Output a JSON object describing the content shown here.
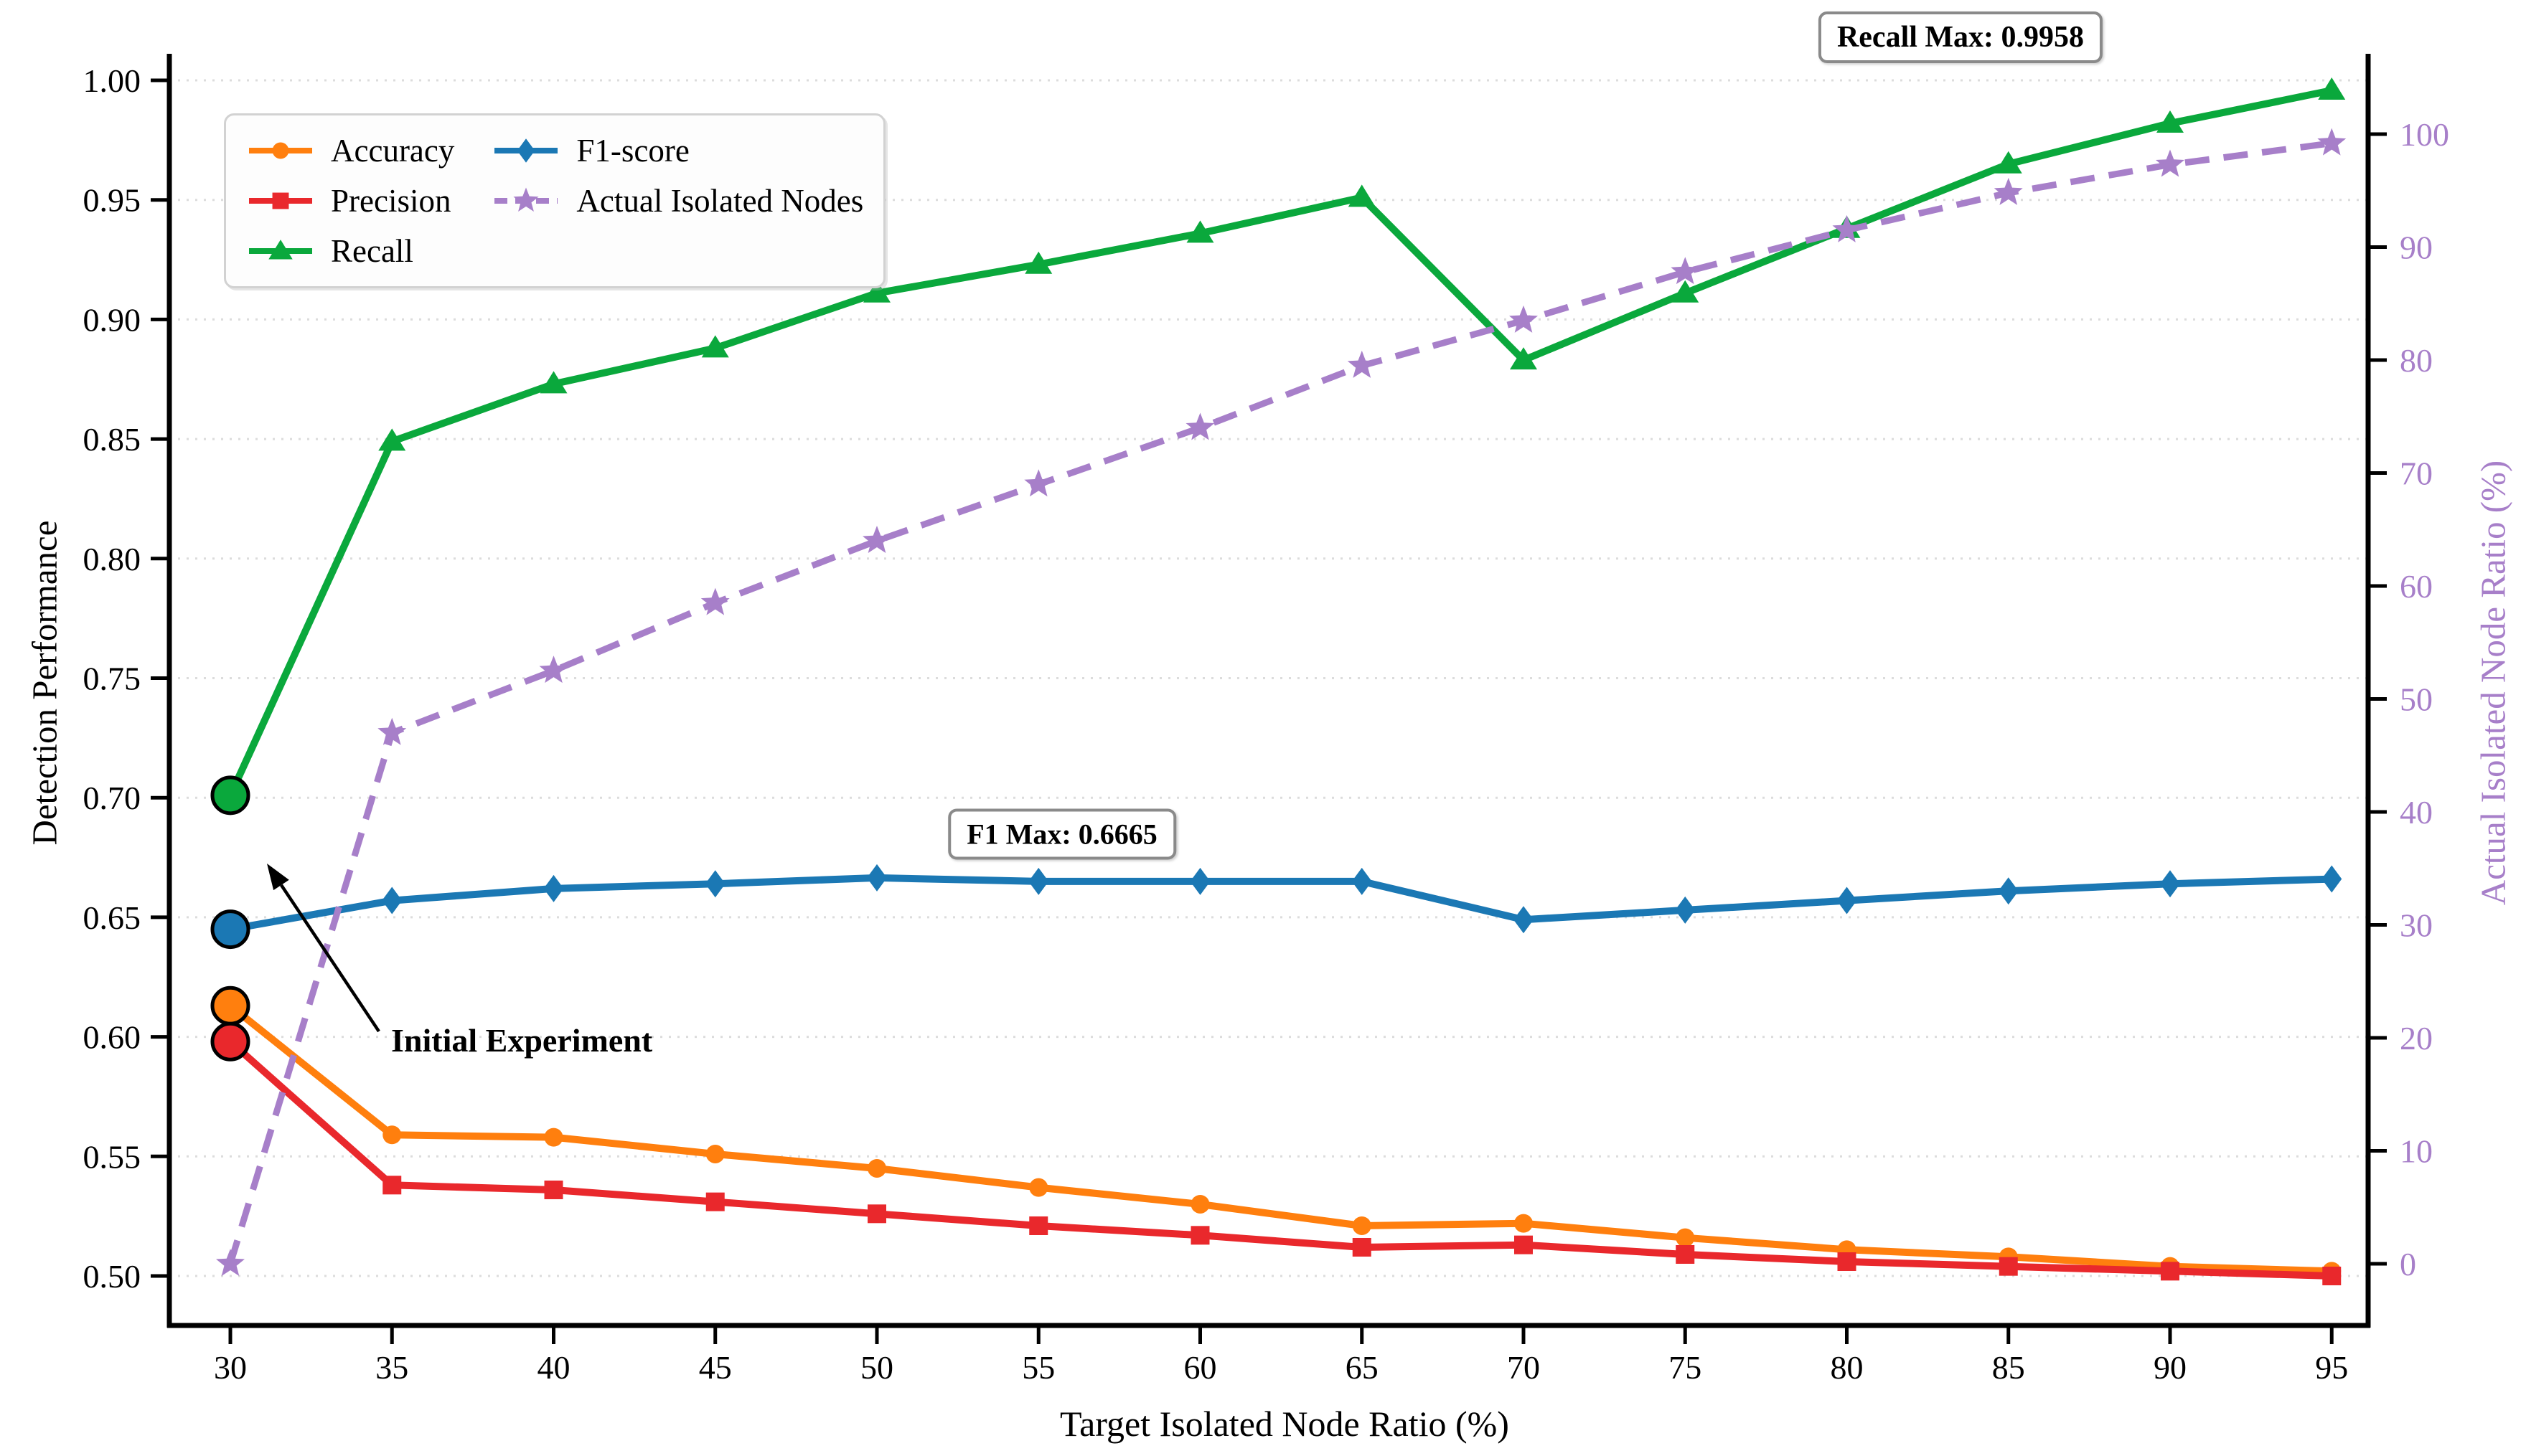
{
  "chart_data": {
    "type": "line",
    "title": "",
    "x": [
      30,
      35,
      40,
      45,
      50,
      55,
      60,
      65,
      70,
      75,
      80,
      85,
      90,
      95
    ],
    "xlabel": "Target Isolated Node Ratio (%)",
    "ylabel_left": "Detection Performance",
    "ylabel_right": "Actual Isolated Node Ratio (%)",
    "ylim_left": [
      0.5,
      1.0
    ],
    "ylim_right": [
      0,
      100
    ],
    "xticks": [
      "30",
      "35",
      "40",
      "45",
      "50",
      "55",
      "60",
      "65",
      "70",
      "75",
      "80",
      "85",
      "90",
      "95"
    ],
    "yticks_left": [
      "0.50",
      "0.55",
      "0.60",
      "0.65",
      "0.70",
      "0.75",
      "0.80",
      "0.85",
      "0.90",
      "0.95",
      "1.00"
    ],
    "yticks_right": [
      "0",
      "10",
      "20",
      "30",
      "40",
      "50",
      "60",
      "70",
      "80",
      "90",
      "100"
    ],
    "grid": "horizontal-dotted",
    "legend_position": "upper-left",
    "axis_colors": {
      "left": "#000000",
      "right": "#a77fc9"
    },
    "series": [
      {
        "name": "Accuracy",
        "axis": "left",
        "color": "#ff7f0e",
        "marker": "circle",
        "linestyle": "solid",
        "values": [
          0.613,
          0.559,
          0.558,
          0.551,
          0.545,
          0.537,
          0.53,
          0.521,
          0.522,
          0.516,
          0.511,
          0.508,
          0.504,
          0.502
        ]
      },
      {
        "name": "Precision",
        "axis": "left",
        "color": "#e9282c",
        "marker": "square",
        "linestyle": "solid",
        "values": [
          0.598,
          0.538,
          0.536,
          0.531,
          0.526,
          0.521,
          0.517,
          0.512,
          0.513,
          0.509,
          0.506,
          0.504,
          0.502,
          0.5
        ]
      },
      {
        "name": "Recall",
        "axis": "left",
        "color": "#0aa83c",
        "marker": "triangle",
        "linestyle": "solid",
        "values": [
          0.701,
          0.849,
          0.873,
          0.888,
          0.911,
          0.923,
          0.936,
          0.951,
          0.883,
          0.911,
          0.938,
          0.965,
          0.982,
          0.9958
        ]
      },
      {
        "name": "F1-score",
        "axis": "left",
        "color": "#1b78b4",
        "marker": "diamond",
        "linestyle": "solid",
        "values": [
          0.645,
          0.657,
          0.662,
          0.664,
          0.6665,
          0.665,
          0.665,
          0.665,
          0.649,
          0.653,
          0.657,
          0.661,
          0.664,
          0.666
        ]
      },
      {
        "name": "Actual Isolated Nodes",
        "axis": "right",
        "color": "#a77fc9",
        "marker": "star",
        "linestyle": "dashed",
        "values": [
          0,
          47,
          52.5,
          58.5,
          64,
          69,
          74,
          79.5,
          83.5,
          87.8,
          91.5,
          94.8,
          97.3,
          99.2
        ]
      }
    ],
    "legend_order": [
      "Accuracy",
      "Precision",
      "Recall",
      "F1-score",
      "Actual Isolated Nodes"
    ],
    "initial_points": {
      "x": 30,
      "values": {
        "Recall": 0.701,
        "F1-score": 0.645,
        "Accuracy": 0.613,
        "Precision": 0.598
      }
    },
    "annotations": {
      "recall_max": {
        "text": "Recall Max: 0.9958"
      },
      "f1_max": {
        "text": "F1 Max: 0.6665"
      },
      "initial": {
        "text": "Initial Experiment"
      }
    }
  }
}
